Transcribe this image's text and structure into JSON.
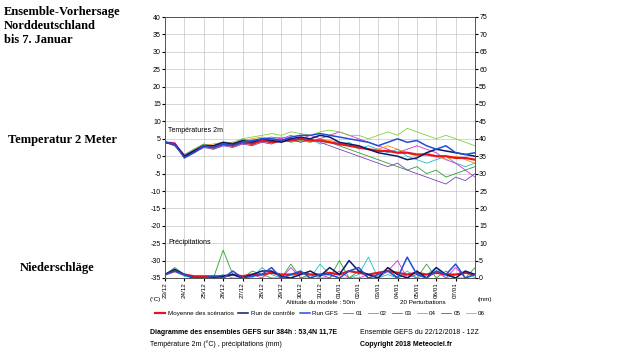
{
  "chart_data": {
    "type": "line",
    "annotations": [
      "Ensemble-Vorhersage\nNorddeutschland\nbis 7. Januar",
      "Temperatur 2 Meter",
      "Niederschläge",
      "Températures 2m",
      "Précipitations",
      "Altitude du modele : 50m",
      "Diagramme des ensembles GEFS sur 384h : 53,4N 11,7E",
      "Température 2m (°C) , précipitations (mm)",
      "Ensemble GEFS du 22/12/2018 - 12Z",
      "Copyright 2018 Meteociel.fr",
      "(°C)",
      "(mm)",
      "20 Perturbations"
    ],
    "x": [
      0,
      0.5,
      1,
      1.5,
      2,
      2.5,
      3,
      3.5,
      4,
      4.5,
      5,
      5.5,
      6,
      6.5,
      7,
      7.5,
      8,
      8.5,
      9,
      9.5,
      10,
      10.5,
      11,
      11.5,
      12,
      12.5,
      13,
      13.5,
      14,
      14.5,
      15,
      15.5,
      16
    ],
    "xlim": [
      0,
      16
    ],
    "xticks": [
      {
        "value": 0,
        "label": "23/12"
      },
      {
        "value": 1,
        "label": "24/12"
      },
      {
        "value": 2,
        "label": "25/12"
      },
      {
        "value": 3,
        "label": "26/12"
      },
      {
        "value": 4,
        "label": "27/12"
      },
      {
        "value": 5,
        "label": "28/12"
      },
      {
        "value": 6,
        "label": "29/12"
      },
      {
        "value": 7,
        "label": "30/12"
      },
      {
        "value": 8,
        "label": "31/12"
      },
      {
        "value": 9,
        "label": "01/01"
      },
      {
        "value": 10,
        "label": "02/01"
      },
      {
        "value": 11,
        "label": "03/01"
      },
      {
        "value": 12,
        "label": "04/01"
      },
      {
        "value": 13,
        "label": "05/01"
      },
      {
        "value": 14,
        "label": "06/01"
      },
      {
        "value": 15,
        "label": "07/01"
      }
    ],
    "ylim": [
      -35,
      40
    ],
    "yticks": [
      -35,
      -30,
      -25,
      -20,
      -15,
      -10,
      -5,
      0,
      5,
      10,
      15,
      20,
      25,
      30,
      35,
      40
    ],
    "y2lim": [
      0,
      75
    ],
    "y2ticks": [
      0,
      5,
      10,
      15,
      20,
      25,
      30,
      35,
      40,
      45,
      50,
      55,
      60,
      65,
      70,
      75
    ],
    "grid": true,
    "legend": "upper center",
    "series": [
      {
        "name": "Moyenne des scénarios",
        "color": "#e8161b",
        "values": [
          4,
          3.5,
          0,
          1.5,
          3,
          2.5,
          3.5,
          3,
          4,
          3.5,
          4.5,
          4,
          4.5,
          4.5,
          5,
          4.5,
          4.5,
          4,
          3.5,
          3,
          2.5,
          2,
          1.5,
          1.5,
          1,
          1,
          0.5,
          0.5,
          0,
          0,
          -0.5,
          -0.5,
          -1
        ]
      },
      {
        "name": "Run de contrôle",
        "color": "#0a1a6e",
        "values": [
          4,
          3.5,
          0,
          1.5,
          3,
          3,
          4,
          3.5,
          4.5,
          4,
          5,
          4.5,
          4,
          5,
          5.5,
          5,
          6,
          5.5,
          4,
          3.5,
          3,
          2,
          1,
          0.5,
          0,
          -1,
          -0.5,
          1,
          2,
          1.5,
          1,
          0.5,
          0
        ]
      },
      {
        "name": "Run GFS",
        "color": "#1f4fd6",
        "values": [
          4,
          3.5,
          -0.5,
          1,
          3,
          2.5,
          3.5,
          3,
          4,
          4.5,
          5,
          5,
          4.5,
          5.5,
          6,
          6,
          6.5,
          6,
          5.5,
          5,
          4.5,
          4,
          3,
          4,
          5,
          4,
          4.5,
          3,
          2,
          3,
          1,
          0.5,
          1
        ]
      },
      {
        "name": "01",
        "color": "#2ca02c",
        "values": [
          4,
          3,
          0,
          2,
          3.5,
          3,
          4,
          3.5,
          5,
          4,
          5,
          4.5,
          5,
          4,
          4.5,
          4,
          5,
          4,
          3,
          2,
          1,
          0,
          -1,
          -2,
          -3,
          -4,
          -3,
          -5,
          -4,
          -6,
          -5,
          -4,
          -3
        ]
      },
      {
        "name": "02",
        "color": "#17becf",
        "values": [
          4,
          3.5,
          0.5,
          2,
          3,
          2,
          3,
          3.5,
          4,
          4.5,
          4,
          5,
          5.5,
          5,
          4,
          5,
          3.5,
          4,
          3,
          4,
          2,
          3,
          2,
          1,
          2,
          0,
          -1,
          -2,
          -1,
          0,
          -2,
          -3,
          -2
        ]
      },
      {
        "name": "03",
        "color": "#d62bd6",
        "values": [
          4,
          4,
          0,
          1,
          2.5,
          3,
          3.5,
          4,
          3.5,
          4,
          5,
          5.5,
          5,
          6,
          5,
          6,
          5,
          6,
          7,
          6,
          5,
          4,
          3,
          2,
          1,
          2,
          3,
          2,
          1,
          -1,
          -2,
          -4,
          -6
        ]
      },
      {
        "name": "04",
        "color": "#ff8c00",
        "values": [
          4,
          3.5,
          -0.5,
          1.5,
          3,
          3.5,
          4,
          3,
          4.5,
          5,
          5.5,
          5,
          4,
          4.5,
          5,
          4,
          5,
          4.5,
          4,
          3,
          3,
          2,
          2,
          3,
          2,
          1,
          0,
          1,
          0,
          -1,
          0,
          -1,
          -2
        ]
      },
      {
        "name": "05",
        "color": "#7b3fbf",
        "values": [
          4,
          3,
          0,
          1,
          2.5,
          2,
          3,
          2.5,
          3.5,
          3,
          4,
          3.5,
          4.5,
          5,
          4,
          5,
          4,
          3,
          2,
          1,
          0,
          -1,
          -2,
          -3,
          -2,
          -4,
          -5,
          -6,
          -7,
          -8,
          -6,
          -7,
          -5
        ]
      },
      {
        "name": "06",
        "color": "#7fd13b",
        "values": [
          4,
          3.5,
          0,
          2,
          3,
          3,
          4,
          4,
          5,
          5.5,
          6,
          6.5,
          6,
          7,
          6.5,
          6,
          7,
          7.5,
          7,
          6,
          6,
          5,
          6,
          7,
          6,
          8,
          7,
          6,
          5,
          6,
          5,
          4,
          3
        ]
      },
      {
        "name": "Moyenne des scénarios",
        "color": "#e8161b",
        "axis": "y2",
        "values": [
          1,
          2,
          1,
          0.5,
          0.5,
          0.5,
          0.5,
          1,
          0.5,
          1,
          1,
          1.5,
          1,
          1,
          1.5,
          1,
          1,
          1.5,
          1,
          2,
          1.5,
          1,
          1.5,
          2,
          1.5,
          1,
          1.5,
          1,
          1.5,
          1,
          1,
          1.5,
          1
        ]
      },
      {
        "name": "Run de contrôle",
        "color": "#0a1a6e",
        "axis": "y2",
        "values": [
          1,
          2.5,
          1,
          0,
          0,
          0,
          0.5,
          1,
          0,
          1,
          2,
          2,
          0.5,
          0,
          1,
          2,
          0.5,
          3,
          1,
          5,
          2,
          1,
          0,
          3,
          1,
          0,
          2,
          0,
          3,
          1,
          0,
          2,
          1
        ]
      },
      {
        "name": "Run GFS",
        "color": "#1f4fd6",
        "axis": "y2",
        "values": [
          1,
          2,
          1,
          0,
          0,
          0.5,
          0,
          2,
          0,
          0.5,
          1,
          3,
          0,
          1,
          2,
          0,
          1,
          1,
          0,
          2,
          3,
          0,
          1,
          2,
          0,
          6,
          1,
          0,
          2,
          1,
          4,
          0,
          1
        ]
      },
      {
        "name": "01",
        "color": "#2ca02c",
        "axis": "y2",
        "values": [
          1,
          3,
          1,
          0,
          0,
          0,
          8,
          1,
          0,
          2,
          1,
          0,
          0,
          4,
          0,
          1,
          0,
          0,
          5,
          0,
          2,
          0,
          0,
          3,
          0,
          1,
          0,
          4,
          0,
          2,
          0,
          0,
          3
        ]
      },
      {
        "name": "02",
        "color": "#17becf",
        "axis": "y2",
        "values": [
          1,
          2,
          0.5,
          0,
          0,
          0,
          1,
          0,
          0,
          0,
          3,
          1,
          0,
          0,
          2,
          0,
          4,
          1,
          0,
          0,
          1,
          6,
          0,
          1,
          0,
          2,
          0,
          1,
          3,
          0,
          1,
          2,
          0
        ]
      },
      {
        "name": "03",
        "color": "#d62bd6",
        "axis": "y2",
        "values": [
          1,
          2,
          1,
          0,
          0,
          0,
          0,
          1,
          0,
          1,
          0,
          2,
          0,
          3,
          0,
          0,
          1,
          0,
          2,
          0,
          0,
          1,
          0,
          2,
          5,
          0,
          1,
          0,
          2,
          0,
          3,
          0,
          1
        ]
      }
    ]
  }
}
